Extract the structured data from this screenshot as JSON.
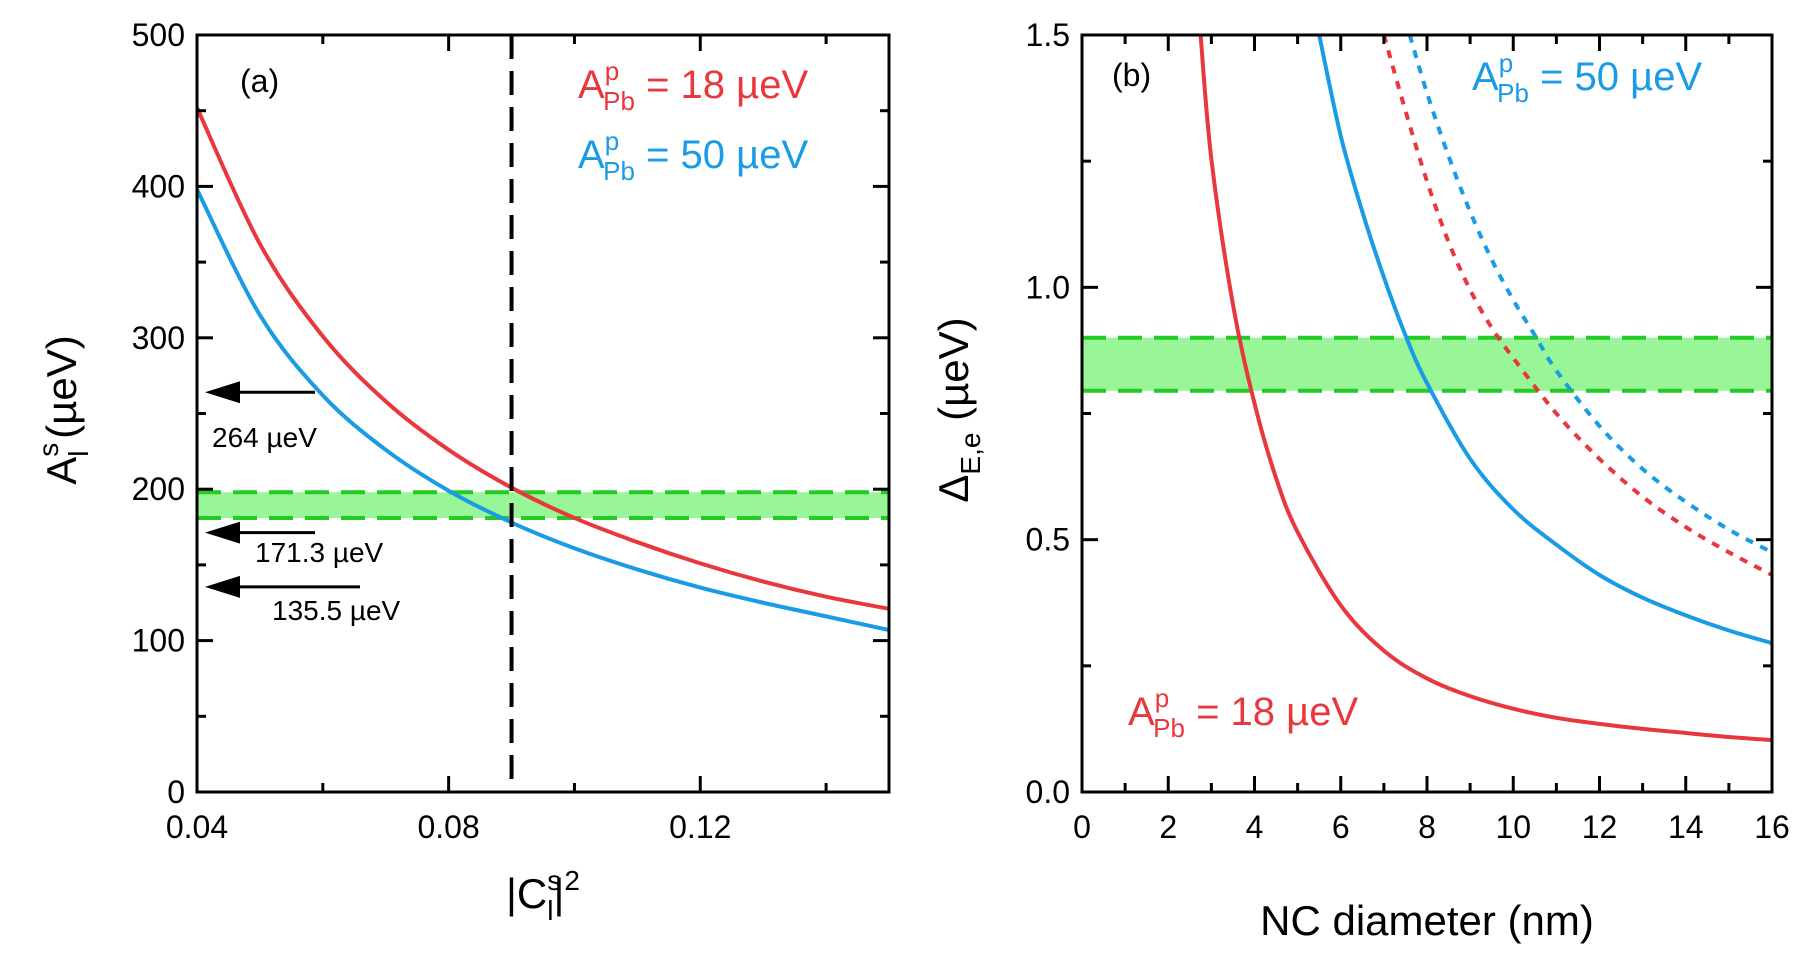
{
  "chart_data": [
    {
      "panel_label": "(a)",
      "type": "line",
      "xlabel": "|C",
      "xlabel_sup": "s",
      "xlabel_sub": "l",
      "xlabel_tail": "|",
      "xlabel_pow": "2",
      "ylabel": "A",
      "ylabel_sup": "s",
      "ylabel_sub": "l",
      "ylabel_tail": " (µeV)",
      "xlim": [
        0.04,
        0.15
      ],
      "ylim": [
        0,
        500
      ],
      "xticks": [
        0.04,
        0.08,
        0.12
      ],
      "xtick_labels": [
        "0.04",
        "0.08",
        "0.12"
      ],
      "yticks": [
        0,
        100,
        200,
        300,
        400,
        500
      ],
      "ytick_labels": [
        "0",
        "100",
        "200",
        "300",
        "400",
        "500"
      ],
      "series": [
        {
          "name": "A_Pb^p = 18 µeV",
          "color": "#e8383d",
          "style": "solid",
          "x": [
            0.04,
            0.05,
            0.06,
            0.07,
            0.08,
            0.09,
            0.1,
            0.11,
            0.12,
            0.13,
            0.14,
            0.15
          ],
          "values": [
            452,
            362,
            301,
            258,
            226,
            201,
            181,
            165,
            151,
            139,
            129,
            121
          ]
        },
        {
          "name": "A_Pb^p = 50 µeV",
          "color": "#1a9be6",
          "style": "solid",
          "x": [
            0.04,
            0.05,
            0.06,
            0.07,
            0.08,
            0.09,
            0.1,
            0.11,
            0.12,
            0.13,
            0.14,
            0.15
          ],
          "values": [
            398,
            315,
            262,
            226,
            199,
            178,
            161,
            147,
            135,
            125,
            116,
            107
          ]
        }
      ],
      "vline": {
        "x": 0.09,
        "color": "#000000",
        "style": "dashed"
      },
      "band": {
        "y0": 181,
        "y1": 198,
        "color": "#98f598",
        "line_color": "#22cc22"
      },
      "legend": [
        {
          "main": "A",
          "sup": "p",
          "sub": "Pb",
          "rest": " = 18 µeV",
          "color": "#e8383d"
        },
        {
          "main": "A",
          "sup": "p",
          "sub": "Pb",
          "rest": " = 50 µeV",
          "color": "#1a9be6"
        }
      ],
      "annotations": [
        {
          "text": "264 µeV",
          "y": 264
        },
        {
          "text": "171.3 µeV",
          "y": 171.3
        },
        {
          "text": "135.5 µeV",
          "y": 135.5
        }
      ]
    },
    {
      "panel_label": "(b)",
      "type": "line",
      "xlabel": "NC diameter (nm)",
      "ylabel": "Δ",
      "ylabel_sub": "E,e",
      "ylabel_tail": " (µeV)",
      "xlim": [
        0,
        16
      ],
      "ylim": [
        0,
        1.5
      ],
      "xticks": [
        0,
        2,
        4,
        6,
        8,
        10,
        12,
        14,
        16
      ],
      "xtick_labels": [
        "0",
        "2",
        "4",
        "6",
        "8",
        "10",
        "12",
        "14",
        "16"
      ],
      "yticks": [
        0,
        0.5,
        1.0,
        1.5
      ],
      "ytick_labels": [
        "0.0",
        "0.5",
        "1.0",
        "1.5"
      ],
      "series": [
        {
          "name": "18 µeV solid",
          "color": "#e8383d",
          "style": "solid",
          "x": [
            2.75,
            3,
            3.5,
            4,
            4.5,
            5,
            6,
            7,
            8,
            9,
            10,
            11,
            12,
            13,
            14,
            15,
            16
          ],
          "values": [
            1.5,
            1.254,
            0.966,
            0.77,
            0.622,
            0.515,
            0.37,
            0.28,
            0.225,
            0.19,
            0.165,
            0.147,
            0.135,
            0.125,
            0.117,
            0.109,
            0.103
          ]
        },
        {
          "name": "50 µeV solid",
          "color": "#1a9be6",
          "style": "solid",
          "x": [
            5.5,
            6,
            6.5,
            7,
            7.5,
            8,
            9,
            10,
            11,
            12,
            13,
            14,
            15,
            16
          ],
          "values": [
            1.5,
            1.3,
            1.15,
            1.02,
            0.905,
            0.81,
            0.66,
            0.56,
            0.49,
            0.43,
            0.385,
            0.35,
            0.32,
            0.295
          ]
        },
        {
          "name": "18 µeV dotted",
          "color": "#e8383d",
          "style": "dotted",
          "x": [
            7.0,
            7.5,
            8,
            8.5,
            9,
            9.5,
            10,
            11,
            12,
            13,
            14,
            15,
            16
          ],
          "values": [
            1.5,
            1.35,
            1.21,
            1.09,
            0.995,
            0.92,
            0.86,
            0.75,
            0.66,
            0.585,
            0.525,
            0.475,
            0.43
          ]
        },
        {
          "name": "50 µeV dotted",
          "color": "#1a9be6",
          "style": "dotted",
          "x": [
            7.6,
            8,
            8.5,
            9,
            9.5,
            10,
            10.5,
            11,
            12,
            13,
            14,
            15,
            16
          ],
          "values": [
            1.5,
            1.385,
            1.26,
            1.15,
            1.055,
            0.975,
            0.905,
            0.835,
            0.725,
            0.64,
            0.575,
            0.52,
            0.475
          ]
        }
      ],
      "band": {
        "y0": 0.795,
        "y1": 0.9,
        "color": "#98f598",
        "line_color": "#22cc22"
      },
      "legend": [
        {
          "main": "A",
          "sup": "p",
          "sub": "Pb",
          "rest": " = 50 µeV",
          "color": "#1a9be6"
        },
        {
          "main": "A",
          "sup": "p",
          "sub": "Pb",
          "rest": " = 18 µeV",
          "color": "#e8383d"
        }
      ]
    }
  ]
}
